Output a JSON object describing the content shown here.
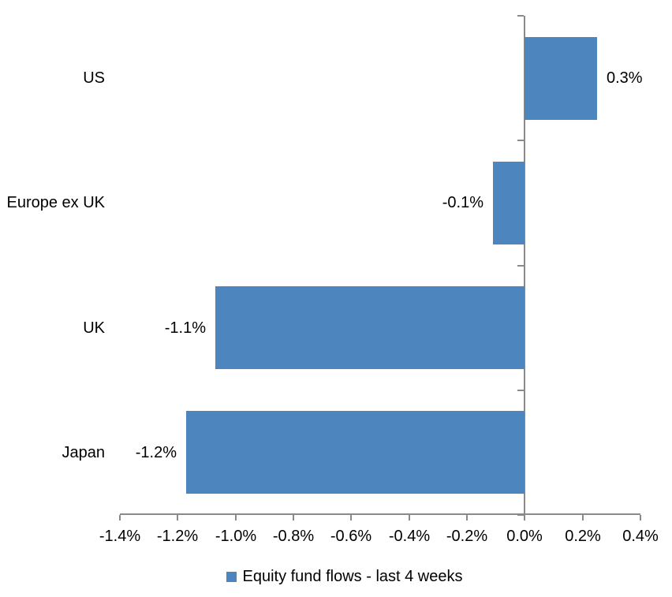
{
  "chart_data": {
    "type": "bar",
    "orientation": "horizontal",
    "title": "",
    "xlabel": "",
    "ylabel": "",
    "categories": [
      "US",
      "Europe ex UK",
      "UK",
      "Japan"
    ],
    "series": [
      {
        "name": "Equity fund flows - last 4 weeks",
        "values": [
          0.3,
          -0.1,
          -1.1,
          -1.2
        ],
        "data_labels": [
          "0.3%",
          "-0.1%",
          "-1.1%",
          "-1.2%"
        ],
        "plotted_values": [
          0.25,
          -0.11,
          -1.07,
          -1.17
        ]
      }
    ],
    "unit": "%",
    "xlim": [
      -1.4,
      0.4
    ],
    "x_tick_values": [
      -1.4,
      -1.2,
      -1.0,
      -0.8,
      -0.6,
      -0.4,
      -0.2,
      0.0,
      0.2,
      0.4
    ],
    "x_tick_labels": [
      "-1.4%",
      "-1.2%",
      "-1.0%",
      "-0.8%",
      "-0.6%",
      "-0.4%",
      "-0.2%",
      "0.0%",
      "0.2%",
      "0.4%"
    ],
    "grid": false,
    "legend_position": "bottom",
    "bar_color": "#4D86BE",
    "axis_color": "#8A8A8A",
    "text_color": "#000000",
    "background_color": "#FFFFFF"
  }
}
